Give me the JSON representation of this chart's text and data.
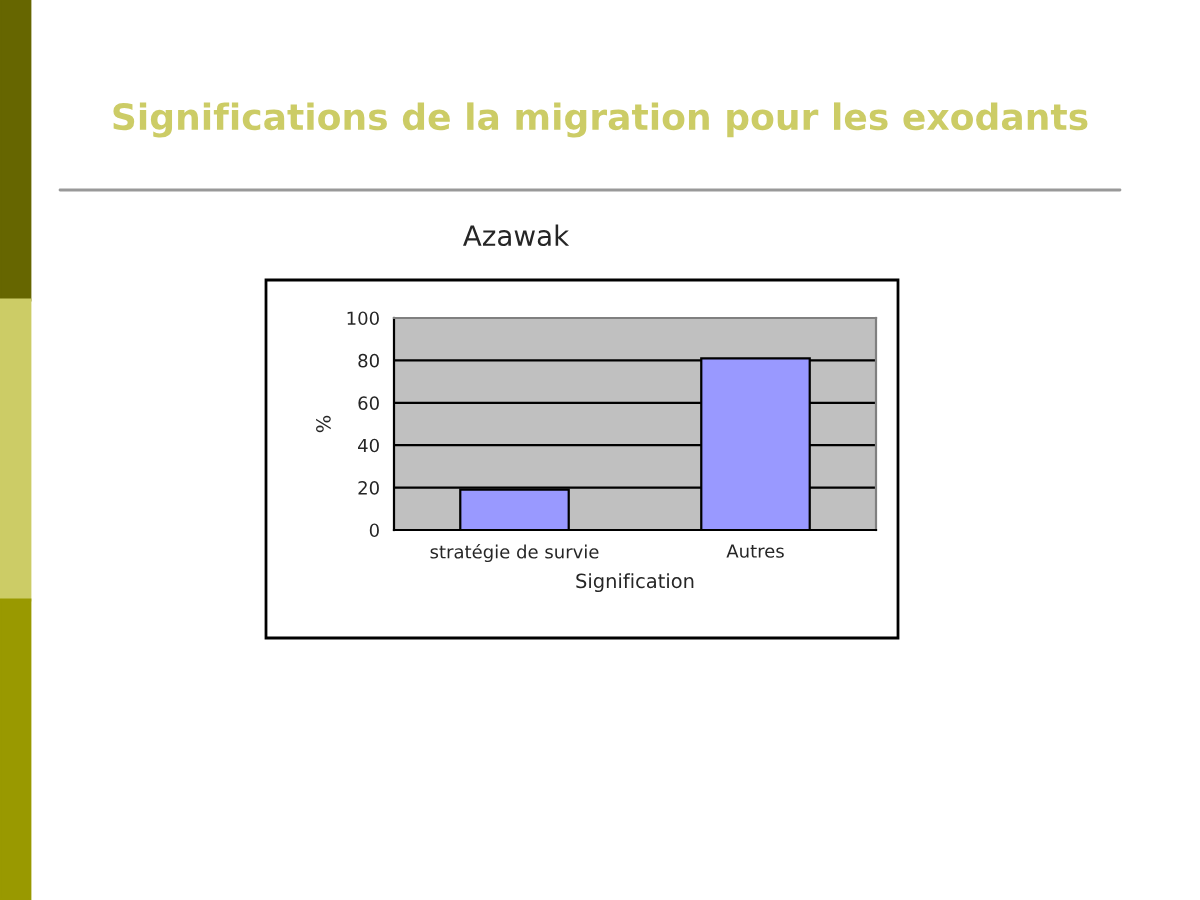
{
  "chart_data": {
    "type": "bar",
    "title": "Significations de la migration pour les exodants",
    "subtitle": "Azawak",
    "xlabel": "Signification",
    "ylabel": "%",
    "categories": [
      "stratégie de survie",
      "Autres"
    ],
    "values": [
      19,
      81
    ],
    "color": "#9999ff",
    "ylim": [
      0,
      100
    ],
    "yticks": [
      0,
      20,
      40,
      60,
      80,
      100
    ],
    "grid": "y"
  }
}
